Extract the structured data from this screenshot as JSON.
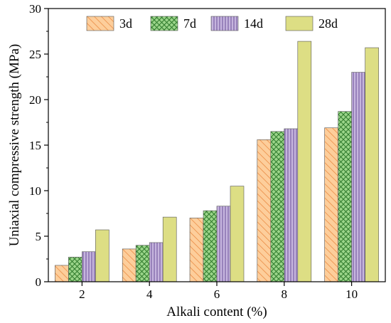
{
  "chart_data": {
    "type": "bar",
    "title": "",
    "xlabel": "Alkali content (%)",
    "ylabel": "Uniaxial compressive strength (MPa)",
    "categories": [
      "2",
      "4",
      "6",
      "8",
      "10"
    ],
    "ylim": [
      0,
      30
    ],
    "yticks": [
      0,
      5,
      10,
      15,
      20,
      25,
      30
    ],
    "grid": false,
    "legend_position": "top",
    "series": [
      {
        "name": "3d",
        "values": [
          1.8,
          3.6,
          7.0,
          15.6,
          16.9
        ],
        "color": "#FDCE9B",
        "stroke": "#E8843A",
        "pattern": "diagonal-hatch"
      },
      {
        "name": "7d",
        "values": [
          2.7,
          4.0,
          7.8,
          16.5,
          18.7
        ],
        "color": "#9BD58A",
        "stroke": "#3E8E3A",
        "pattern": "cross-hatch"
      },
      {
        "name": "14d",
        "values": [
          3.3,
          4.3,
          8.3,
          16.8,
          23.0
        ],
        "color": "#C6B5DE",
        "stroke": "#6A4F98",
        "pattern": "vertical-lines"
      },
      {
        "name": "28d",
        "values": [
          5.7,
          7.1,
          10.5,
          26.4,
          25.7
        ],
        "color": "#DDDE84",
        "stroke": "#8C8C2E",
        "pattern": "solid"
      }
    ]
  }
}
